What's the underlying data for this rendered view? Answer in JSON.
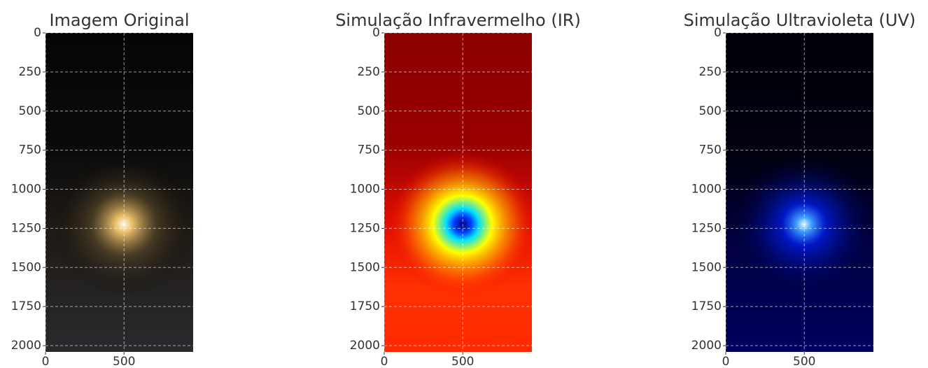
{
  "chart_data": [
    {
      "type": "image",
      "title": "Imagem Original",
      "xlim": [
        0,
        940
      ],
      "ylim": [
        2040,
        0
      ],
      "xticks": [
        0,
        500
      ],
      "yticks": [
        0,
        250,
        500,
        750,
        1000,
        1250,
        1500,
        1750,
        2000
      ],
      "grid": true
    },
    {
      "type": "image",
      "title": "Simulação Infravermelho (IR)",
      "xlim": [
        0,
        940
      ],
      "ylim": [
        2040,
        0
      ],
      "xticks": [
        0,
        500
      ],
      "yticks": [
        0,
        250,
        500,
        750,
        1000,
        1250,
        1500,
        1750,
        2000
      ],
      "grid": true
    },
    {
      "type": "image",
      "title": "Simulação Ultravioleta (UV)",
      "xlim": [
        0,
        940
      ],
      "ylim": [
        2040,
        0
      ],
      "xticks": [
        0,
        500
      ],
      "yticks": [
        0,
        250,
        500,
        750,
        1000,
        1250,
        1500,
        1750,
        2000
      ],
      "grid": true
    }
  ]
}
